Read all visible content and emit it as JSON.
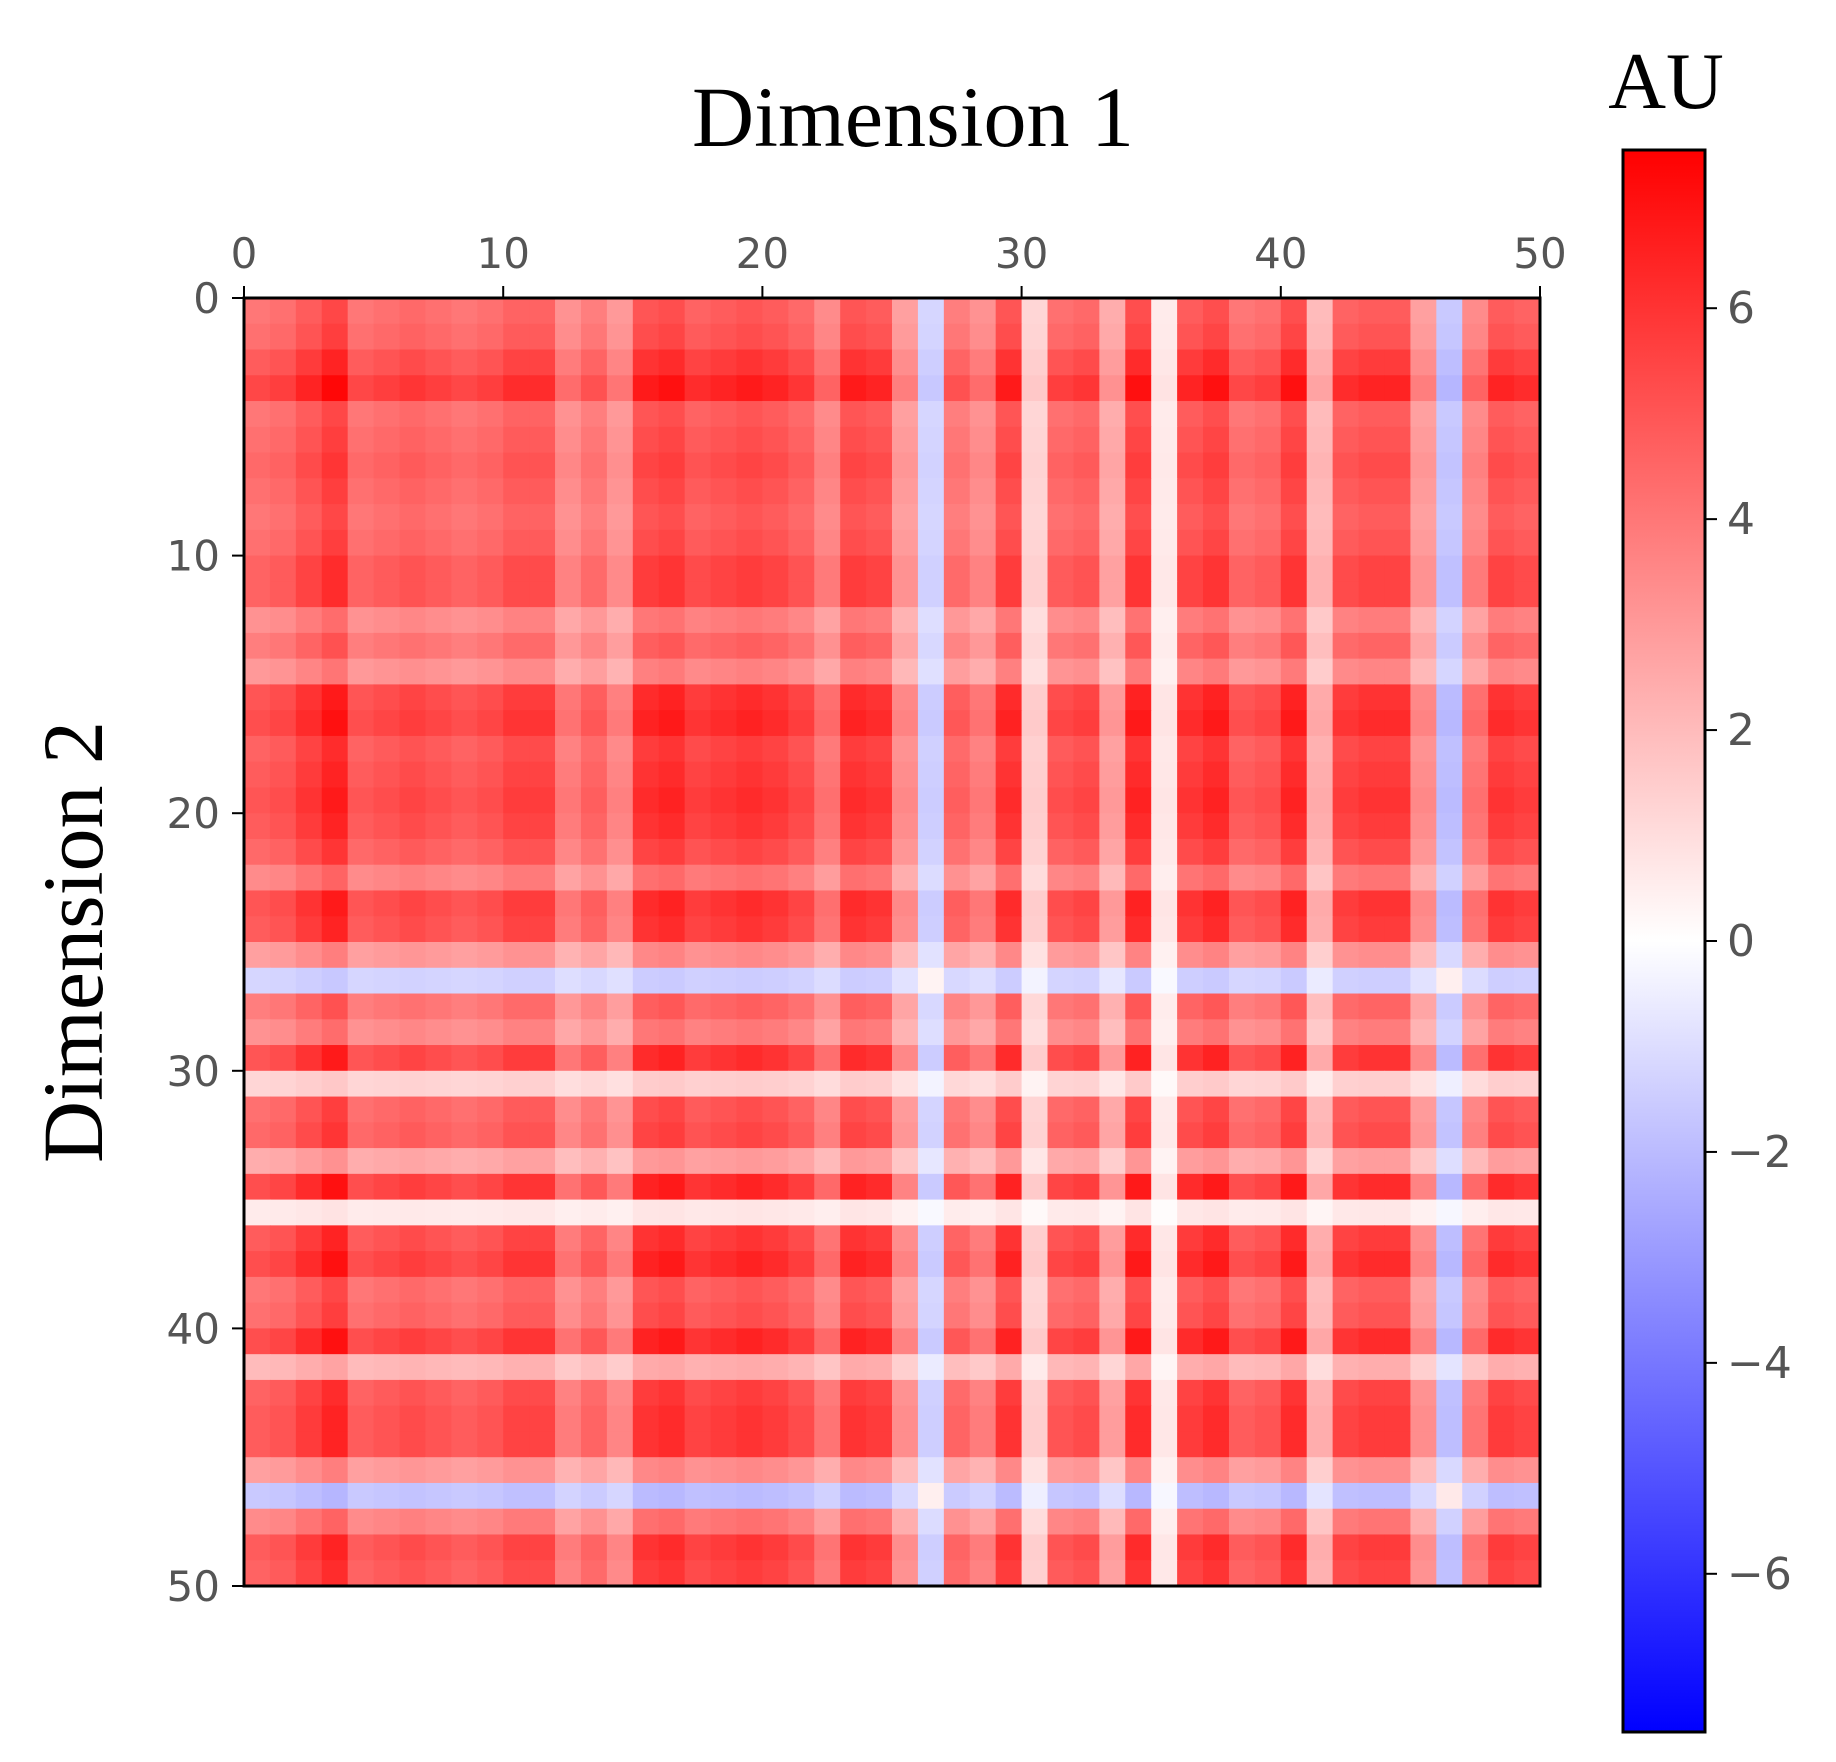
{
  "chart_data": {
    "type": "heatmap",
    "title": "",
    "xlabel": "Dimension 1",
    "ylabel": "Dimension 2",
    "x_axis_position": "top",
    "n": 50,
    "xlim": [
      0,
      50
    ],
    "ylim": [
      0,
      50
    ],
    "x_ticks": [
      0,
      10,
      20,
      30,
      40,
      50
    ],
    "y_ticks": [
      0,
      10,
      20,
      30,
      40,
      50
    ],
    "x_tick_labels": [
      "0",
      "10",
      "20",
      "30",
      "40",
      "50"
    ],
    "y_tick_labels": [
      "0",
      "10",
      "20",
      "30",
      "40",
      "50"
    ],
    "colorbar": {
      "label": "AU",
      "colormap": "bwr",
      "vmin": -7.5,
      "vmax": 7.5,
      "ticks": [
        6,
        4,
        2,
        0,
        -2,
        -4,
        -6
      ],
      "tick_labels": [
        "6",
        "4",
        "2",
        "0",
        "−2",
        "−4",
        "−6"
      ],
      "low_color": "#0000ff",
      "mid_color": "#ffffff",
      "high_color": "#ff0000"
    },
    "model": "value[i][j] = strength[i] * strength[j] (symmetric outer product approximating the displayed matrix)",
    "strength": [
      2.0,
      2.1,
      2.4,
      2.7,
      2.0,
      2.1,
      2.2,
      2.1,
      2.0,
      2.1,
      2.3,
      2.3,
      1.6,
      1.9,
      1.5,
      2.5,
      2.6,
      2.3,
      2.4,
      2.5,
      2.4,
      2.2,
      1.7,
      2.5,
      2.4,
      1.4,
      -0.6,
      1.9,
      1.6,
      2.5,
      0.6,
      2.1,
      2.2,
      1.2,
      2.6,
      0.3,
      2.4,
      2.6,
      2.0,
      2.1,
      2.6,
      1.0,
      2.3,
      2.4,
      2.4,
      1.4,
      -0.8,
      1.7,
      2.4,
      2.3
    ]
  }
}
